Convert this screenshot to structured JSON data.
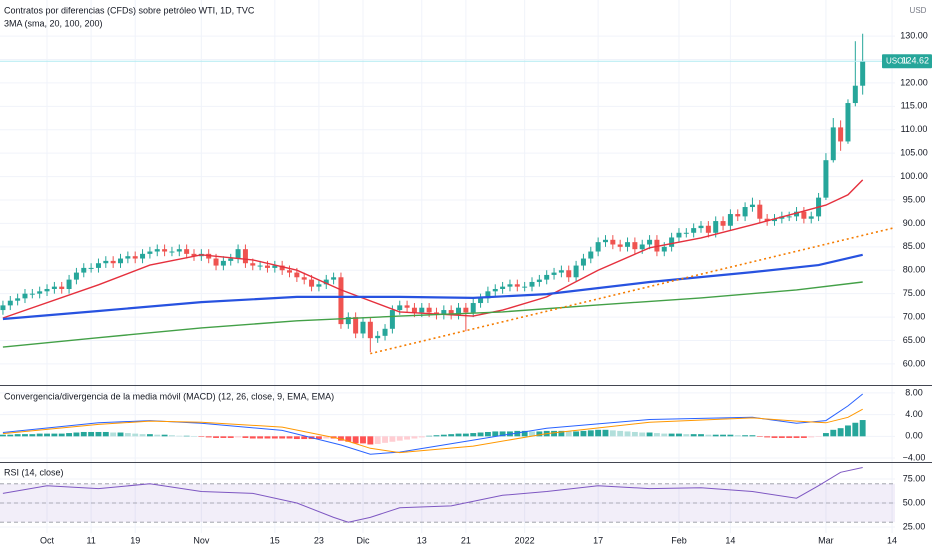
{
  "chart_data": [
    {
      "type": "candlestick",
      "title": "Contratos por diferencias (CFDs) sobre petróleo WTI, 1D, TVC",
      "subtitle": "3MA (sma, 20, 100, 200)",
      "currency": "USD",
      "symbol": "USOIL",
      "up_color": "#26a69a",
      "down_color": "#ef5350",
      "last_price_color": "#26a69a",
      "open": [
        71.5,
        72.5,
        73.5,
        74,
        75,
        75,
        75.5,
        76,
        76.5,
        76,
        78,
        79.5,
        80.5,
        80.5,
        81.5,
        82,
        81.5,
        82.5,
        83,
        82.5,
        83.5,
        84,
        84.5,
        84,
        84,
        84.5,
        83.5,
        83,
        83.5,
        82.5,
        81,
        82,
        82.5,
        84.5,
        81.5,
        81,
        81,
        80.5,
        81,
        80,
        79.5,
        78.5,
        78,
        76.5,
        77,
        78,
        78.5,
        68.5,
        70,
        66.5,
        69,
        65.5,
        66,
        67.5,
        71.5,
        72.5,
        72,
        71,
        72,
        71,
        70.5,
        71.5,
        70.5,
        72,
        71,
        73,
        74,
        75.5,
        76,
        76.5,
        77,
        76.5,
        76.5,
        77.5,
        78,
        79,
        79.5,
        80,
        78.5,
        81,
        82.5,
        84,
        86,
        86.5,
        85.5,
        85,
        86,
        84.5,
        85.5,
        86.5,
        84,
        85,
        87,
        88,
        88,
        89,
        89.5,
        88,
        90.5,
        89.5,
        92,
        91.5,
        93.5,
        94,
        91,
        90.5,
        91,
        91.5,
        91.5,
        92.5,
        91,
        91.5,
        95.5,
        103.5,
        110.5,
        107.5,
        115.7,
        119.4
      ],
      "high": [
        73.5,
        74.5,
        75,
        76,
        76,
        76.5,
        77,
        77.5,
        77.5,
        79,
        80.5,
        81.5,
        81.5,
        82.5,
        83,
        83,
        83.5,
        84,
        84,
        84.5,
        85,
        85.5,
        85.5,
        85,
        85.5,
        85.5,
        84.5,
        84.5,
        84.5,
        83.5,
        83,
        83.5,
        85.5,
        85.5,
        82.5,
        82,
        82,
        82,
        82,
        81,
        80.5,
        79.5,
        79,
        78,
        79,
        79.5,
        79.5,
        71,
        71,
        70,
        70,
        67,
        68.5,
        72.5,
        73.5,
        73.5,
        73,
        73,
        73,
        72,
        72.5,
        72.5,
        73,
        73,
        74,
        75,
        76.5,
        77,
        77.5,
        78,
        78,
        77.5,
        78.5,
        79,
        80,
        80.5,
        81,
        81,
        82,
        83.5,
        85,
        87,
        87.5,
        87.5,
        86.5,
        87,
        87,
        86.5,
        87.5,
        87.5,
        86,
        88,
        89,
        89,
        90,
        90.5,
        90.5,
        91.5,
        91.5,
        93,
        93,
        94.5,
        95.5,
        95,
        92,
        92,
        92.5,
        92.5,
        93.5,
        93.5,
        92.5,
        96.5,
        105,
        112.5,
        112,
        116.5,
        128.9,
        130.5
      ],
      "low": [
        70.5,
        71.5,
        72.5,
        73,
        74,
        74,
        74.5,
        75,
        75,
        75,
        77,
        78.5,
        79.5,
        79.5,
        80.5,
        80.5,
        80.5,
        81.5,
        81.5,
        81.5,
        82.5,
        83,
        83,
        83,
        83,
        82.5,
        82,
        82,
        81.5,
        80,
        80,
        81,
        81.5,
        80.5,
        80,
        80,
        79.5,
        79.5,
        79,
        78.5,
        77.5,
        77,
        75.5,
        75.5,
        76,
        77,
        67.5,
        67.5,
        65.5,
        65.5,
        62.5,
        64.5,
        65,
        66.5,
        70.5,
        71,
        70,
        70,
        70,
        69.5,
        69.5,
        69.5,
        69.5,
        67,
        70,
        72,
        73,
        74.5,
        75,
        75.5,
        75.5,
        75.5,
        75.5,
        76.5,
        77,
        78,
        78.5,
        77.5,
        77.5,
        80,
        81.5,
        83,
        85,
        84.5,
        84,
        84,
        83.5,
        83.5,
        84.5,
        83,
        83,
        84,
        86,
        87,
        87,
        88,
        87,
        87,
        88.5,
        88.5,
        90.5,
        90.5,
        92.5,
        90,
        89.5,
        89.5,
        90,
        90.5,
        90.5,
        90,
        90,
        90.5,
        95,
        103,
        105.5,
        107,
        115,
        117.5
      ],
      "close": [
        72.5,
        73.5,
        74,
        75,
        75,
        75.5,
        76,
        76.5,
        76,
        78,
        79.5,
        80.5,
        80.5,
        81.5,
        82,
        81.5,
        82.5,
        83,
        82.5,
        83.5,
        84,
        84.5,
        84,
        84,
        84.5,
        83.5,
        83,
        83.5,
        82.5,
        81,
        82,
        82.5,
        84.5,
        81.5,
        81,
        81,
        80.5,
        81,
        80,
        79.5,
        78.5,
        78,
        76.5,
        77,
        78,
        78.5,
        68.5,
        70,
        66.5,
        69,
        65.5,
        66,
        67.5,
        71.5,
        72.5,
        72,
        71,
        72,
        71,
        70.5,
        71.5,
        70.5,
        72,
        71,
        73,
        74,
        75.5,
        76,
        76.5,
        77,
        76.5,
        76.5,
        77.5,
        78,
        79,
        79.5,
        80,
        78.5,
        81,
        82.5,
        84,
        86,
        86.5,
        85.5,
        85,
        86,
        84.5,
        85.5,
        86.5,
        84,
        85,
        87,
        88,
        88,
        89,
        89.5,
        88,
        90.5,
        89.5,
        92,
        91.5,
        93.5,
        94,
        91,
        90.5,
        91,
        91.5,
        91.5,
        92.5,
        91,
        91.5,
        95.5,
        103.5,
        110.5,
        107.5,
        115.7,
        119.4,
        124.62
      ],
      "series": [
        {
          "color": "#e5303d",
          "x": [
            0,
            13,
            20,
            27,
            34,
            40,
            46,
            54,
            64,
            68,
            74,
            81,
            88,
            95,
            102,
            108,
            112,
            115,
            117
          ],
          "values": [
            69.8,
            76.9,
            81.1,
            83.3,
            82.2,
            80,
            75.8,
            71.1,
            70.2,
            71.5,
            74.3,
            80,
            84.8,
            86.9,
            89.7,
            92.2,
            93.9,
            96.1,
            99.3
          ]
        },
        {
          "color": "#2752e0",
          "x": [
            0,
            13,
            27,
            40,
            54,
            64,
            74,
            88,
            102,
            111,
            117
          ],
          "values": [
            69.6,
            71.3,
            73.2,
            74.3,
            74.3,
            74.1,
            74.9,
            77.5,
            79.6,
            81.1,
            83.3
          ]
        },
        {
          "color": "#43a047",
          "x": [
            0,
            13,
            27,
            40,
            54,
            68,
            81,
            95,
            108,
            117
          ],
          "values": [
            63.6,
            65.6,
            67.7,
            69.2,
            70.2,
            71.1,
            72.6,
            74.1,
            75.8,
            77.5
          ]
        }
      ],
      "trendline": {
        "color": "#f57c00",
        "x": [
          50,
          121.4
        ],
        "values": [
          62.2,
          89.1
        ]
      },
      "xlim": [
        -0.4,
        121.4
      ],
      "ylim": [
        55.5,
        137.7
      ],
      "yticks": [
        {
          "value": 60,
          "label": "60.00"
        },
        {
          "value": 65,
          "label": "65.00"
        },
        {
          "value": 70,
          "label": "70.00"
        },
        {
          "value": 75,
          "label": "75.00"
        },
        {
          "value": 80,
          "label": "80.00"
        },
        {
          "value": 85,
          "label": "85.00"
        },
        {
          "value": 90,
          "label": "90.00"
        },
        {
          "value": 95,
          "label": "95.00"
        },
        {
          "value": 100,
          "label": "100.00"
        },
        {
          "value": 105,
          "label": "105.00"
        },
        {
          "value": 110,
          "label": "110.00"
        },
        {
          "value": 115,
          "label": "115.00"
        },
        {
          "value": 120,
          "label": "120.00"
        },
        {
          "value": 125,
          "label": "125.00"
        },
        {
          "value": 130,
          "label": "130.00"
        }
      ],
      "grid": true
    },
    {
      "type": "macd",
      "title": "Convergencia/divergencia de la media móvil (MACD) (12, 26, close, 9, EMA, EMA)",
      "histogram": {
        "colors": [
          "#26a69a",
          "#b2dfdb",
          "#ff5252",
          "#ffcdd2"
        ],
        "values": [
          0.3,
          0.3,
          0.4,
          0.4,
          0.4,
          0.5,
          0.5,
          0.5,
          0.5,
          0.6,
          0.7,
          0.8,
          0.8,
          0.8,
          0.8,
          0.7,
          0.7,
          0.6,
          0.5,
          0.4,
          0.4,
          0.3,
          0.3,
          0.2,
          0.1,
          0.1,
          0,
          -0.1,
          -0.2,
          -0.3,
          -0.3,
          -0.3,
          -0.2,
          -0.3,
          -0.4,
          -0.4,
          -0.4,
          -0.4,
          -0.4,
          -0.4,
          -0.5,
          -0.5,
          -0.5,
          -0.5,
          -0.4,
          -0.4,
          -0.8,
          -1.0,
          -1.3,
          -1.3,
          -1.5,
          -1.4,
          -1.2,
          -1.0,
          -0.8,
          -0.6,
          -0.4,
          -0.2,
          0.1,
          0.2,
          0.3,
          0.4,
          0.5,
          0.5,
          0.6,
          0.7,
          0.8,
          0.9,
          0.9,
          0.9,
          1.0,
          1.0,
          0.9,
          0.9,
          1.0,
          1.0,
          1.0,
          0.9,
          0.9,
          1.0,
          1.1,
          1.2,
          1.2,
          1.1,
          1.0,
          0.9,
          0.8,
          0.7,
          0.7,
          0.6,
          0.5,
          0.5,
          0.5,
          0.4,
          0.4,
          0.4,
          0.3,
          0.3,
          0.3,
          0.3,
          0.2,
          0.2,
          0.2,
          -0.1,
          -0.2,
          -0.3,
          -0.3,
          -0.3,
          -0.3,
          -0.3,
          -0.2,
          -0.1,
          0.6,
          1.2,
          1.5,
          2.0,
          2.5,
          3.0
        ]
      },
      "series": [
        {
          "color": "#2962ff",
          "x": [
            0,
            13,
            20,
            27,
            38,
            46,
            50,
            54,
            64,
            74,
            88,
            102,
            108,
            112,
            115,
            117
          ],
          "values": [
            0.7,
            2.5,
            2.9,
            2.4,
            1.1,
            -1.6,
            -3.3,
            -2.9,
            -0.7,
            1.5,
            3.1,
            3.5,
            2.4,
            2.9,
            5.6,
            7.8
          ]
        },
        {
          "color": "#ff9800",
          "x": [
            0,
            13,
            20,
            27,
            38,
            46,
            50,
            54,
            64,
            74,
            88,
            102,
            108,
            112,
            115,
            117
          ],
          "values": [
            0.5,
            2.2,
            2.8,
            2.6,
            1.7,
            -0.5,
            -2.2,
            -3.0,
            -1.8,
            0.5,
            2.6,
            3.4,
            2.8,
            2.5,
            3.5,
            5.0
          ]
        }
      ],
      "xlim": [
        -0.4,
        121.4
      ],
      "ylim": [
        -4.73,
        9.27
      ],
      "yticks": [
        {
          "value": -4,
          "label": "−4.00"
        },
        {
          "value": 0,
          "label": "0.00"
        },
        {
          "value": 4,
          "label": "4.00"
        },
        {
          "value": 8,
          "label": "8.00"
        }
      ],
      "grid": true
    },
    {
      "type": "line",
      "title": "RSI (14, close)",
      "levels": [
        70,
        50,
        30
      ],
      "band_color": "rgba(126,87,194,0.10)",
      "series": [
        {
          "color": "#7e57c2",
          "x": [
            0,
            6,
            13,
            20,
            27,
            34,
            40,
            45,
            47,
            50,
            54,
            61,
            68,
            74,
            81,
            88,
            95,
            102,
            108,
            111,
            114,
            117
          ],
          "values": [
            60,
            68,
            65,
            70,
            62,
            60,
            50,
            35,
            30,
            35,
            45,
            47,
            58,
            62,
            68,
            65,
            66,
            62,
            55,
            68,
            82,
            87
          ]
        }
      ],
      "xlim": [
        -0.4,
        121.4
      ],
      "ylim": [
        18.75,
        91.7
      ],
      "yticks": [
        {
          "value": 25,
          "label": "25.00"
        },
        {
          "value": 50,
          "label": "50.00"
        },
        {
          "value": 75,
          "label": "75.00"
        }
      ],
      "xticks": [
        {
          "value": 6,
          "label": "Oct"
        },
        {
          "value": 12,
          "label": "11"
        },
        {
          "value": 18,
          "label": "19"
        },
        {
          "value": 27,
          "label": "Nov"
        },
        {
          "value": 37,
          "label": "15"
        },
        {
          "value": 43,
          "label": "23"
        },
        {
          "value": 49,
          "label": "Dic"
        },
        {
          "value": 57,
          "label": "13"
        },
        {
          "value": 63,
          "label": "21"
        },
        {
          "value": 71,
          "label": "2022"
        },
        {
          "value": 81,
          "label": "17"
        },
        {
          "value": 92,
          "label": "Feb"
        },
        {
          "value": 99,
          "label": "14"
        },
        {
          "value": 112,
          "label": "Mar"
        },
        {
          "value": 121,
          "label": "14"
        }
      ],
      "grid": true
    }
  ]
}
